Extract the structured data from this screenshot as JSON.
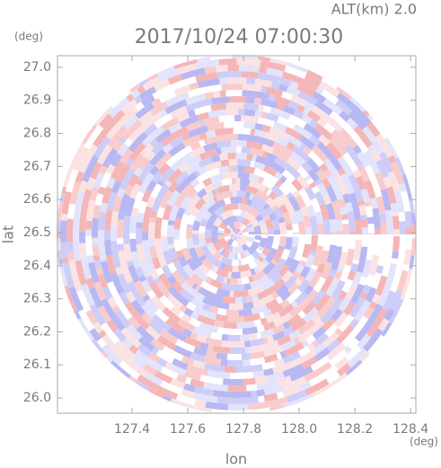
{
  "chart_data": {
    "type": "radar-field",
    "title": "2017/10/24 07:00:30",
    "subtitle": "ALT(km) 2.0",
    "x_label": "lon",
    "y_label": "lat",
    "x_unit": "(deg)",
    "y_unit": "(deg)",
    "xlim": [
      127.132,
      128.419
    ],
    "ylim": [
      25.954,
      27.035
    ],
    "xticks": [
      {
        "value": 127.4,
        "label": "127.4"
      },
      {
        "value": 127.6,
        "label": "127.6"
      },
      {
        "value": 127.8,
        "label": "127.8"
      },
      {
        "value": 128.0,
        "label": "128.0"
      },
      {
        "value": 128.2,
        "label": "128.2"
      },
      {
        "value": 128.4,
        "label": "128.4"
      }
    ],
    "yticks": [
      {
        "value": 26.0,
        "label": "26.0"
      },
      {
        "value": 26.1,
        "label": "26.1"
      },
      {
        "value": 26.2,
        "label": "26.2"
      },
      {
        "value": 26.3,
        "label": "26.3"
      },
      {
        "value": 26.4,
        "label": "26.4"
      },
      {
        "value": 26.5,
        "label": "26.5"
      },
      {
        "value": 26.6,
        "label": "26.6"
      },
      {
        "value": 26.7,
        "label": "26.7"
      },
      {
        "value": 26.8,
        "label": "26.8"
      },
      {
        "value": 26.9,
        "label": "26.9"
      },
      {
        "value": 27.0,
        "label": "27.0"
      }
    ]
  }
}
